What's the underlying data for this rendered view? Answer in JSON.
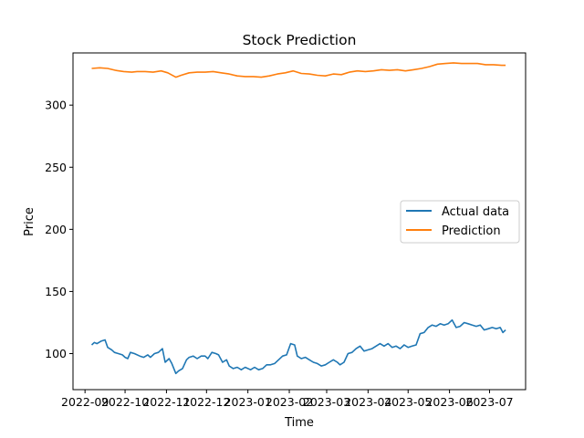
{
  "chart_data": {
    "type": "line",
    "title": "Stock Prediction",
    "xlabel": "Time",
    "ylabel": "Price",
    "ylim": [
      71,
      342
    ],
    "xlim": [
      "2022-08-23",
      "2023-07-28"
    ],
    "x_ticks": [
      {
        "date": "2022-09-01",
        "label": "2022-09"
      },
      {
        "date": "2022-10-01",
        "label": "2022-10"
      },
      {
        "date": "2022-11-01",
        "label": "2022-11"
      },
      {
        "date": "2022-12-01",
        "label": "2022-12"
      },
      {
        "date": "2023-01-01",
        "label": "2023-01"
      },
      {
        "date": "2023-02-01",
        "label": "2023-02"
      },
      {
        "date": "2023-03-01",
        "label": "2023-03"
      },
      {
        "date": "2023-04-01",
        "label": "2023-04"
      },
      {
        "date": "2023-05-01",
        "label": "2023-05"
      },
      {
        "date": "2023-06-01",
        "label": "2023-06"
      },
      {
        "date": "2023-07-01",
        "label": "2023-07"
      }
    ],
    "y_ticks": [
      100,
      150,
      200,
      250,
      300
    ],
    "grid": false,
    "legend": "center-right",
    "series": [
      {
        "name": "Actual data",
        "color": "#1f77b4",
        "points": [
          [
            "2022-09-06",
            107
          ],
          [
            "2022-09-08",
            109
          ],
          [
            "2022-09-10",
            108
          ],
          [
            "2022-09-13",
            110
          ],
          [
            "2022-09-16",
            111
          ],
          [
            "2022-09-18",
            105
          ],
          [
            "2022-09-21",
            103
          ],
          [
            "2022-09-23",
            101
          ],
          [
            "2022-09-26",
            100
          ],
          [
            "2022-09-29",
            99
          ],
          [
            "2022-10-01",
            97
          ],
          [
            "2022-10-03",
            96
          ],
          [
            "2022-10-05",
            101
          ],
          [
            "2022-10-08",
            100
          ],
          [
            "2022-10-12",
            98
          ],
          [
            "2022-10-15",
            97
          ],
          [
            "2022-10-18",
            99
          ],
          [
            "2022-10-20",
            97
          ],
          [
            "2022-10-23",
            100
          ],
          [
            "2022-10-26",
            101
          ],
          [
            "2022-10-29",
            104
          ],
          [
            "2022-10-31",
            93
          ],
          [
            "2022-11-03",
            96
          ],
          [
            "2022-11-05",
            92
          ],
          [
            "2022-11-08",
            84
          ],
          [
            "2022-11-10",
            86
          ],
          [
            "2022-11-13",
            88
          ],
          [
            "2022-11-16",
            95
          ],
          [
            "2022-11-18",
            97
          ],
          [
            "2022-11-21",
            98
          ],
          [
            "2022-11-24",
            96
          ],
          [
            "2022-11-27",
            98
          ],
          [
            "2022-11-30",
            98
          ],
          [
            "2022-12-02",
            96
          ],
          [
            "2022-12-05",
            101
          ],
          [
            "2022-12-08",
            100
          ],
          [
            "2022-12-10",
            99
          ],
          [
            "2022-12-13",
            93
          ],
          [
            "2022-12-16",
            95
          ],
          [
            "2022-12-18",
            90
          ],
          [
            "2022-12-21",
            88
          ],
          [
            "2022-12-24",
            89
          ],
          [
            "2022-12-27",
            87
          ],
          [
            "2022-12-30",
            89
          ],
          [
            "2023-01-03",
            87
          ],
          [
            "2023-01-06",
            89
          ],
          [
            "2023-01-09",
            87
          ],
          [
            "2023-01-12",
            88
          ],
          [
            "2023-01-15",
            91
          ],
          [
            "2023-01-18",
            91
          ],
          [
            "2023-01-21",
            92
          ],
          [
            "2023-01-24",
            95
          ],
          [
            "2023-01-27",
            98
          ],
          [
            "2023-01-30",
            99
          ],
          [
            "2023-02-02",
            108
          ],
          [
            "2023-02-05",
            107
          ],
          [
            "2023-02-07",
            98
          ],
          [
            "2023-02-10",
            96
          ],
          [
            "2023-02-13",
            97
          ],
          [
            "2023-02-16",
            95
          ],
          [
            "2023-02-19",
            93
          ],
          [
            "2023-02-22",
            92
          ],
          [
            "2023-02-25",
            90
          ],
          [
            "2023-02-28",
            91
          ],
          [
            "2023-03-03",
            93
          ],
          [
            "2023-03-06",
            95
          ],
          [
            "2023-03-09",
            93
          ],
          [
            "2023-03-11",
            91
          ],
          [
            "2023-03-14",
            93
          ],
          [
            "2023-03-17",
            100
          ],
          [
            "2023-03-20",
            101
          ],
          [
            "2023-03-23",
            104
          ],
          [
            "2023-03-26",
            106
          ],
          [
            "2023-03-29",
            102
          ],
          [
            "2023-04-01",
            103
          ],
          [
            "2023-04-04",
            104
          ],
          [
            "2023-04-07",
            106
          ],
          [
            "2023-04-10",
            108
          ],
          [
            "2023-04-13",
            106
          ],
          [
            "2023-04-16",
            108
          ],
          [
            "2023-04-19",
            105
          ],
          [
            "2023-04-22",
            106
          ],
          [
            "2023-04-25",
            104
          ],
          [
            "2023-04-28",
            107
          ],
          [
            "2023-05-01",
            105
          ],
          [
            "2023-05-04",
            106
          ],
          [
            "2023-05-07",
            107
          ],
          [
            "2023-05-10",
            116
          ],
          [
            "2023-05-13",
            117
          ],
          [
            "2023-05-16",
            121
          ],
          [
            "2023-05-19",
            123
          ],
          [
            "2023-05-22",
            122
          ],
          [
            "2023-05-25",
            124
          ],
          [
            "2023-05-28",
            123
          ],
          [
            "2023-05-31",
            124
          ],
          [
            "2023-06-03",
            127
          ],
          [
            "2023-06-06",
            121
          ],
          [
            "2023-06-09",
            122
          ],
          [
            "2023-06-12",
            125
          ],
          [
            "2023-06-15",
            124
          ],
          [
            "2023-06-18",
            123
          ],
          [
            "2023-06-21",
            122
          ],
          [
            "2023-06-24",
            123
          ],
          [
            "2023-06-27",
            119
          ],
          [
            "2023-06-30",
            120
          ],
          [
            "2023-07-03",
            121
          ],
          [
            "2023-07-06",
            120
          ],
          [
            "2023-07-09",
            121
          ],
          [
            "2023-07-11",
            117
          ],
          [
            "2023-07-13",
            119
          ]
        ]
      },
      {
        "name": "Prediction",
        "color": "#ff7f0e",
        "points": [
          [
            "2022-09-06",
            329.5
          ],
          [
            "2022-09-12",
            330
          ],
          [
            "2022-09-18",
            329.5
          ],
          [
            "2022-09-24",
            328
          ],
          [
            "2022-09-30",
            327
          ],
          [
            "2022-10-06",
            326.5
          ],
          [
            "2022-10-10",
            327
          ],
          [
            "2022-10-16",
            327
          ],
          [
            "2022-10-22",
            326.5
          ],
          [
            "2022-10-28",
            327.5
          ],
          [
            "2022-11-02",
            326
          ],
          [
            "2022-11-08",
            322.5
          ],
          [
            "2022-11-12",
            324
          ],
          [
            "2022-11-18",
            326
          ],
          [
            "2022-11-24",
            326.5
          ],
          [
            "2022-11-30",
            326.5
          ],
          [
            "2022-12-06",
            327
          ],
          [
            "2022-12-12",
            326
          ],
          [
            "2022-12-18",
            325
          ],
          [
            "2022-12-24",
            323.5
          ],
          [
            "2022-12-30",
            323
          ],
          [
            "2023-01-05",
            323
          ],
          [
            "2023-01-11",
            322.5
          ],
          [
            "2023-01-17",
            323.5
          ],
          [
            "2023-01-23",
            325
          ],
          [
            "2023-01-29",
            326
          ],
          [
            "2023-02-04",
            327.5
          ],
          [
            "2023-02-10",
            325.5
          ],
          [
            "2023-02-16",
            325
          ],
          [
            "2023-02-22",
            324
          ],
          [
            "2023-02-28",
            323.5
          ],
          [
            "2023-03-06",
            325
          ],
          [
            "2023-03-12",
            324.5
          ],
          [
            "2023-03-18",
            326.5
          ],
          [
            "2023-03-24",
            327.5
          ],
          [
            "2023-03-30",
            327
          ],
          [
            "2023-04-05",
            327.5
          ],
          [
            "2023-04-11",
            328.5
          ],
          [
            "2023-04-17",
            328
          ],
          [
            "2023-04-23",
            328.5
          ],
          [
            "2023-04-29",
            327.5
          ],
          [
            "2023-05-05",
            328.5
          ],
          [
            "2023-05-11",
            329.5
          ],
          [
            "2023-05-17",
            331
          ],
          [
            "2023-05-23",
            333
          ],
          [
            "2023-05-29",
            333.5
          ],
          [
            "2023-06-04",
            334
          ],
          [
            "2023-06-10",
            333.5
          ],
          [
            "2023-06-16",
            333.5
          ],
          [
            "2023-06-22",
            333.5
          ],
          [
            "2023-06-28",
            332.5
          ],
          [
            "2023-07-04",
            332.5
          ],
          [
            "2023-07-10",
            332
          ],
          [
            "2023-07-13",
            332
          ]
        ]
      }
    ]
  }
}
